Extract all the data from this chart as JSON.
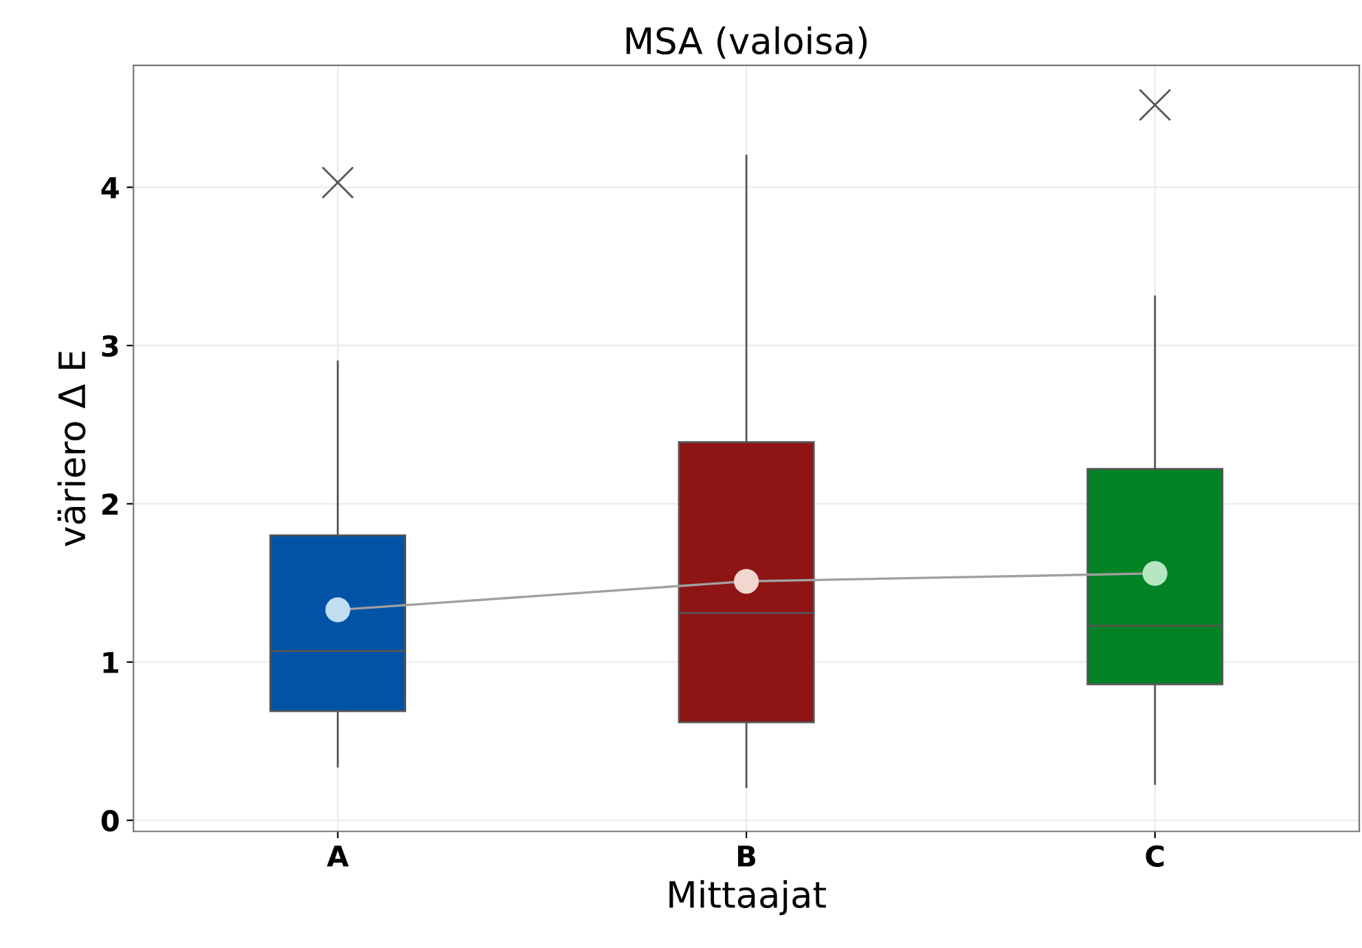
{
  "chart_data": {
    "type": "box",
    "title": "MSA (valoisa)",
    "xlabel": "Mittaajat",
    "ylabel": "väriero Δ E",
    "categories": [
      "A",
      "B",
      "C"
    ],
    "colors": [
      "#0053a6",
      "#8f1414",
      "#008225"
    ],
    "boxes": [
      {
        "low": 0.34,
        "q1": 0.69,
        "median": 1.07,
        "q3": 1.8,
        "high": 2.9,
        "outliers": [
          4.03
        ]
      },
      {
        "low": 0.21,
        "q1": 0.62,
        "median": 1.31,
        "q3": 2.39,
        "high": 4.2
      },
      {
        "low": 0.23,
        "q1": 0.86,
        "median": 1.23,
        "q3": 2.22,
        "high": 3.31,
        "outliers": [
          4.52
        ]
      }
    ],
    "series": [
      {
        "type": "line",
        "color": "#a0a0a0",
        "colors": [
          "#c0deef",
          "#f2d6d0",
          "#b6e6c2"
        ],
        "values": [
          1.33,
          1.51,
          1.56
        ]
      }
    ],
    "ylim": [
      -0.07,
      4.77
    ],
    "yticks": [
      0,
      1,
      2,
      3,
      4
    ],
    "grid": true,
    "marker": "circle"
  }
}
